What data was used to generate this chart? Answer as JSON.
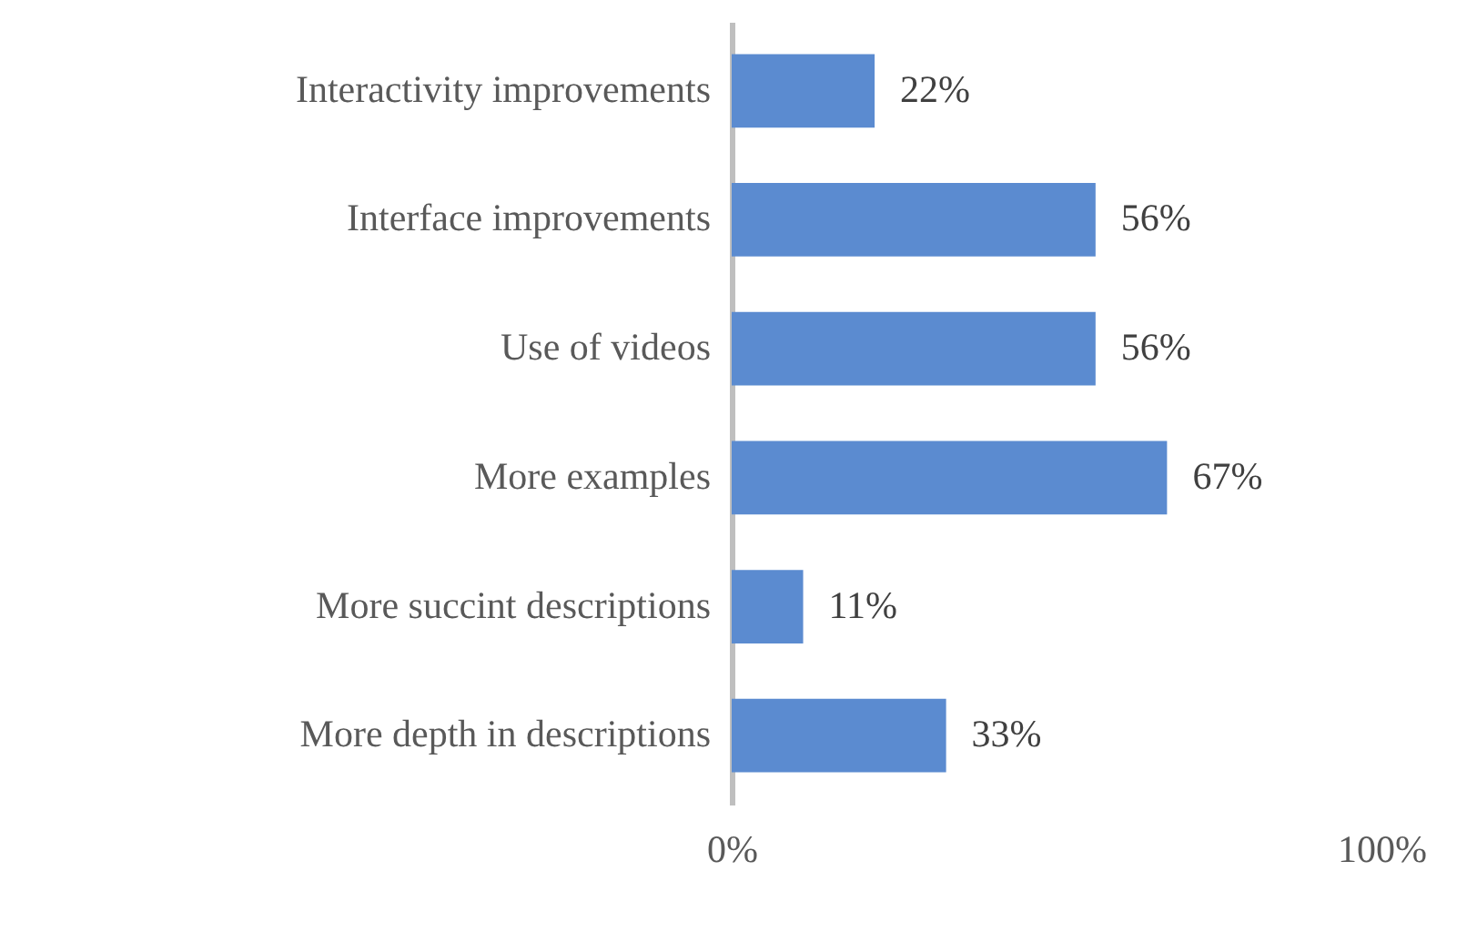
{
  "chart_data": {
    "type": "bar",
    "orientation": "horizontal",
    "categories": [
      "Interactivity improvements",
      "Interface improvements",
      "Use of videos",
      "More examples",
      "More succint descriptions",
      "More depth in descriptions"
    ],
    "values": [
      22,
      56,
      56,
      67,
      11,
      33
    ],
    "value_labels": [
      "22%",
      "56%",
      "56%",
      "67%",
      "11%",
      "33%"
    ],
    "color": "#5b8bd0",
    "xlim": [
      0,
      100
    ],
    "xticks": [
      {
        "value": 0,
        "label": "0%"
      },
      {
        "value": 100,
        "label": "100%"
      }
    ],
    "grid": false
  }
}
